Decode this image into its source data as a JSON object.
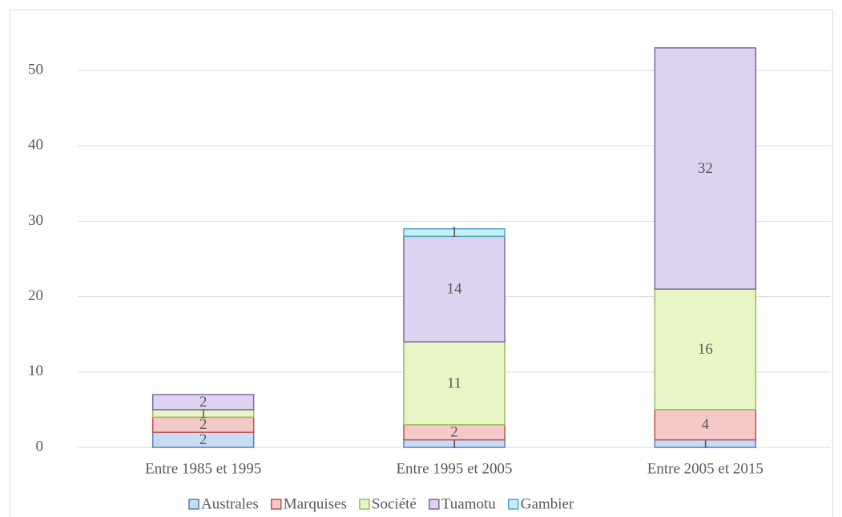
{
  "chart_data": {
    "type": "stacked_bar",
    "categories": [
      "Entre 1985 et 1995",
      "Entre 1995 et 2005",
      "Entre 2005 et 2015"
    ],
    "series": [
      {
        "name": "Australes",
        "color": "#c9dbf2",
        "edgecolor": "#4f81bd",
        "values": [
          2,
          1,
          1
        ]
      },
      {
        "name": "Marquises",
        "color": "#f4c9c8",
        "edgecolor": "#c0504d",
        "values": [
          2,
          2,
          4
        ]
      },
      {
        "name": "Société",
        "color": "#e8f5c6",
        "edgecolor": "#9bbb59",
        "values": [
          1,
          11,
          16
        ]
      },
      {
        "name": "Tuamotu",
        "color": "#ddd3f0",
        "edgecolor": "#8064a2",
        "values": [
          2,
          14,
          32
        ]
      },
      {
        "name": "Gambier",
        "color": "#c8edf6",
        "edgecolor": "#4bacc6",
        "values": [
          null,
          1,
          null
        ]
      }
    ],
    "ylim": [
      0,
      55
    ],
    "yticks": [
      0,
      10,
      20,
      30,
      40,
      50
    ],
    "grid": true,
    "legend": "bottom"
  }
}
